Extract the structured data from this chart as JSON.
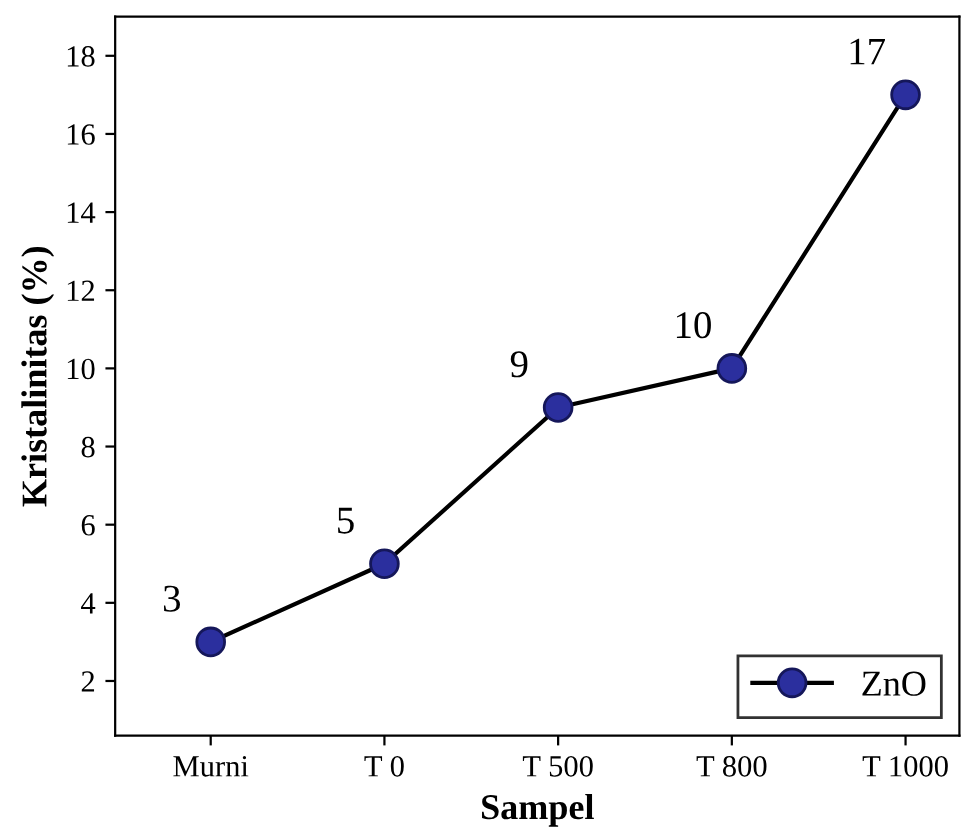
{
  "chart_data": {
    "type": "line",
    "xlabel": "Sampel",
    "ylabel": "Kristalinitas (%)",
    "categories": [
      "Murni",
      "T 0",
      "T 500",
      "T 800",
      "T 1000"
    ],
    "series": [
      {
        "name": "ZnO",
        "color": "#2b2f9e",
        "values": [
          3,
          5,
          9,
          10,
          17
        ]
      }
    ],
    "ylim": [
      0.6,
      19
    ],
    "yticks": [
      2,
      4,
      6,
      8,
      10,
      12,
      14,
      16,
      18
    ],
    "data_labels": true,
    "legend": "bottom right",
    "marker": "circle",
    "line_style": "solid",
    "grid": false
  }
}
